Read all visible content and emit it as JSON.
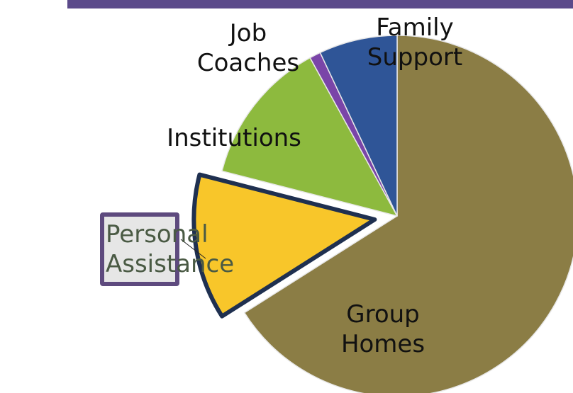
{
  "chart_data": {
    "type": "pie",
    "categories": [
      "Group Homes",
      "Personal Assistance",
      "Institutions",
      "Job Coaches",
      "Family Support"
    ],
    "values": [
      66,
      13,
      13,
      1,
      7
    ],
    "colors": [
      "#8b7d45",
      "#f8c62a",
      "#8dba3e",
      "#7a45a8",
      "#2f5597"
    ]
  }
}
